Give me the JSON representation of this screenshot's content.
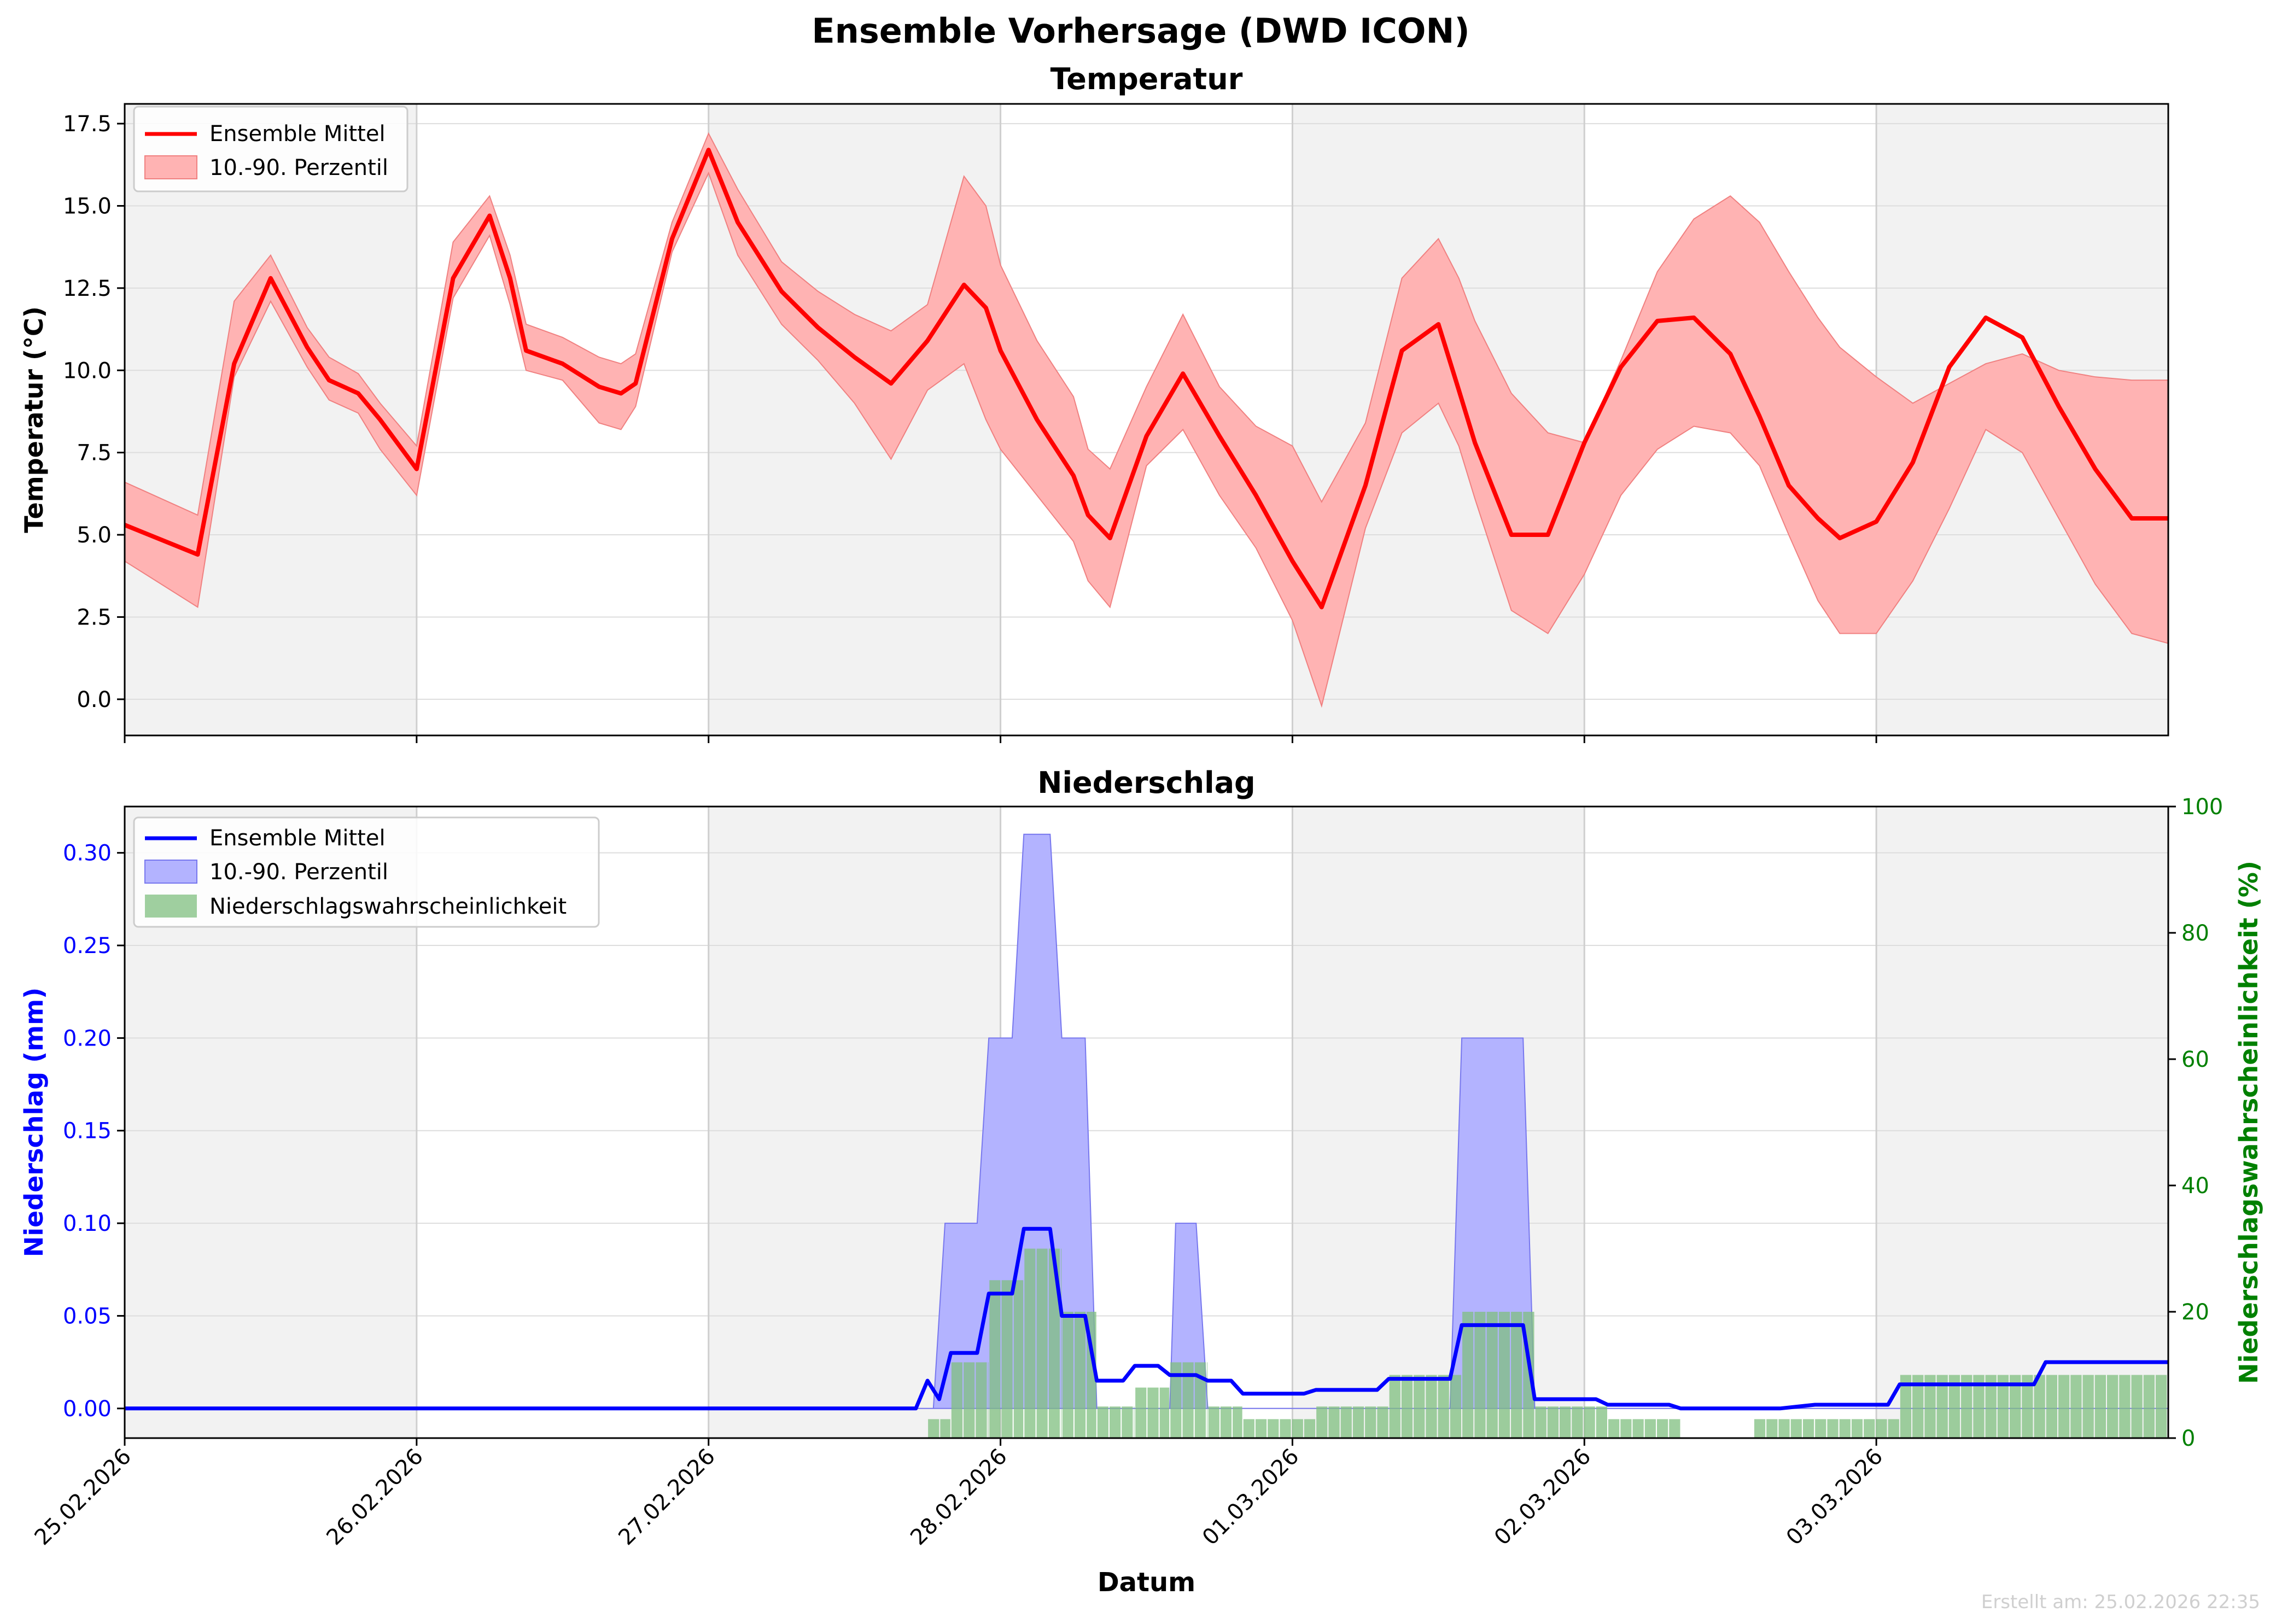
{
  "figure": {
    "suptitle": "Ensemble Vorhersage (DWD ICON)",
    "footer": "Erstellt am: 25.02.2026 22:35",
    "xlabel": "Datum",
    "date_labels": [
      "25.02.2026",
      "26.02.2026",
      "27.02.2026",
      "28.02.2026",
      "01.03.2026",
      "02.03.2026",
      "03.03.2026"
    ]
  },
  "colors": {
    "temp_line": "#ff0000",
    "temp_band": "#ffb3b3",
    "precip_line": "#0000ff",
    "precip_band": "#b3b3ff",
    "prob_bar": "#7fbf7f",
    "night_shade": "#f2f2f2",
    "prob_axis": "#008000"
  },
  "chart_data": [
    {
      "type": "line",
      "title": "Temperatur",
      "ylabel": "Temperatur (°C)",
      "xlim_days": [
        0,
        7.0
      ],
      "ylim": [
        -1.1,
        18.1
      ],
      "yticks": [
        "0.0",
        "2.5",
        "5.0",
        "7.5",
        "10.0",
        "12.5",
        "15.0",
        "17.5"
      ],
      "legend": {
        "placement": "top-left",
        "entries": [
          "Ensemble Mittel",
          "10.-90. Perzentil"
        ]
      },
      "shaded_intervals_days": [
        [
          0,
          1
        ],
        [
          2,
          3
        ],
        [
          4,
          5
        ],
        [
          6,
          7
        ]
      ],
      "x_days": [
        0,
        0.25,
        0.375,
        0.5,
        0.625,
        0.7,
        0.8,
        0.875,
        1.0,
        1.125,
        1.25,
        1.32,
        1.375,
        1.5,
        1.625,
        1.7,
        1.75,
        1.875,
        2.0,
        2.1,
        2.25,
        2.375,
        2.5,
        2.625,
        2.75,
        2.875,
        2.95,
        3.0,
        3.125,
        3.25,
        3.3,
        3.375,
        3.5,
        3.625,
        3.75,
        3.875,
        4.0,
        4.1,
        4.25,
        4.375,
        4.5,
        4.57,
        4.625,
        4.75,
        4.875,
        5.0,
        5.125,
        5.25,
        5.375,
        5.5,
        5.6,
        5.7,
        5.8,
        5.875,
        6.0,
        6.125,
        6.25,
        6.375,
        6.5,
        6.625,
        6.75,
        6.875,
        7.0
      ],
      "series": [
        {
          "name": "Ensemble Mittel",
          "values": [
            5.3,
            4.4,
            10.2,
            12.8,
            10.7,
            9.7,
            9.3,
            8.5,
            7.0,
            12.8,
            14.7,
            12.8,
            10.6,
            10.2,
            9.5,
            9.3,
            9.6,
            14.0,
            16.7,
            14.5,
            12.4,
            11.3,
            10.4,
            9.6,
            10.9,
            12.6,
            11.9,
            10.6,
            8.5,
            6.8,
            5.6,
            4.9,
            8.0,
            9.9,
            8.0,
            6.2,
            4.2,
            2.8,
            6.5,
            10.6,
            11.4,
            9.4,
            7.8,
            5.0,
            5.0,
            7.8,
            10.1,
            11.5,
            11.6,
            10.5,
            8.6,
            6.5,
            5.5,
            4.9,
            5.4,
            7.2,
            10.1,
            11.6,
            11.0,
            8.9,
            7.0,
            5.5,
            5.5
          ]
        },
        {
          "name": "10.-90. Perzentil",
          "lower": [
            4.2,
            2.8,
            9.8,
            12.1,
            10.1,
            9.1,
            8.7,
            7.6,
            6.2,
            12.2,
            14.1,
            12.0,
            10.0,
            9.7,
            8.4,
            8.2,
            8.9,
            13.6,
            16.0,
            13.5,
            11.4,
            10.3,
            9.0,
            7.3,
            9.4,
            10.2,
            8.5,
            7.6,
            6.2,
            4.8,
            3.6,
            2.8,
            7.1,
            8.2,
            6.2,
            4.6,
            2.4,
            -0.2,
            5.2,
            8.1,
            9.0,
            7.7,
            6.1,
            2.7,
            2.0,
            3.8,
            6.2,
            7.6,
            8.3,
            8.1,
            7.1,
            5.0,
            3.0,
            2.0,
            2.0,
            3.6,
            5.8,
            8.2,
            7.5,
            5.5,
            3.5,
            2.0,
            1.7
          ],
          "upper": [
            6.6,
            5.6,
            12.1,
            13.5,
            11.3,
            10.4,
            9.9,
            9.0,
            7.7,
            13.9,
            15.3,
            13.5,
            11.4,
            11.0,
            10.4,
            10.2,
            10.5,
            14.5,
            17.2,
            15.5,
            13.3,
            12.4,
            11.7,
            11.2,
            12.0,
            15.9,
            15.0,
            13.2,
            10.9,
            9.2,
            7.6,
            7.0,
            9.5,
            11.7,
            9.5,
            8.3,
            7.7,
            6.0,
            8.4,
            12.8,
            14.0,
            12.8,
            11.5,
            9.3,
            8.1,
            7.8,
            10.3,
            13.0,
            14.6,
            15.3,
            14.5,
            13.0,
            11.6,
            10.7,
            9.8,
            9.0,
            9.6,
            10.2,
            10.5,
            10.0,
            9.8,
            9.7,
            9.7
          ]
        }
      ]
    },
    {
      "type": "line",
      "title": "Niederschlag",
      "ylabel": "Niederschlag (mm)",
      "y2label": "Niederschlagswahrscheinlichkeit (%)",
      "xlim_days": [
        0,
        7.0
      ],
      "ylim": [
        -0.016,
        0.325
      ],
      "y2lim": [
        0,
        100
      ],
      "yticks": [
        "0.00",
        "0.05",
        "0.10",
        "0.15",
        "0.20",
        "0.25",
        "0.30"
      ],
      "y2ticks": [
        "0",
        "20",
        "40",
        "60",
        "80",
        "100"
      ],
      "legend": {
        "placement": "top-left",
        "entries": [
          "Ensemble Mittel",
          "10.-90. Perzentil",
          "Niederschlagswahrscheinlichkeit"
        ]
      },
      "shaded_intervals_days": [
        [
          0,
          1
        ],
        [
          2,
          3
        ],
        [
          4,
          5
        ],
        [
          6,
          7
        ]
      ],
      "step_width_days": 0.125,
      "mean_steps": [
        [
          0,
          0
        ],
        [
          2.71,
          0
        ],
        [
          2.75,
          0.015
        ],
        [
          2.79,
          0.005
        ],
        [
          2.83,
          0.03
        ],
        [
          2.92,
          0.03
        ],
        [
          2.96,
          0.062
        ],
        [
          3.04,
          0.062
        ],
        [
          3.08,
          0.097
        ],
        [
          3.17,
          0.097
        ],
        [
          3.21,
          0.05
        ],
        [
          3.29,
          0.05
        ],
        [
          3.33,
          0.015
        ],
        [
          3.42,
          0.015
        ],
        [
          3.46,
          0.023
        ],
        [
          3.54,
          0.023
        ],
        [
          3.58,
          0.018
        ],
        [
          3.67,
          0.018
        ],
        [
          3.71,
          0.015
        ],
        [
          3.79,
          0.015
        ],
        [
          3.83,
          0.008
        ],
        [
          4.04,
          0.008
        ],
        [
          4.08,
          0.01
        ],
        [
          4.29,
          0.01
        ],
        [
          4.33,
          0.016
        ],
        [
          4.54,
          0.016
        ],
        [
          4.58,
          0.045
        ],
        [
          4.79,
          0.045
        ],
        [
          4.83,
          0.005
        ],
        [
          5.04,
          0.005
        ],
        [
          5.08,
          0.002
        ],
        [
          5.29,
          0.002
        ],
        [
          5.33,
          0.0
        ],
        [
          5.67,
          0.0
        ],
        [
          5.79,
          0.002
        ],
        [
          6.04,
          0.002
        ],
        [
          6.08,
          0.013
        ],
        [
          6.54,
          0.013
        ],
        [
          6.58,
          0.025
        ],
        [
          7.0,
          0.025
        ]
      ],
      "band_upper_steps": [
        [
          0,
          0
        ],
        [
          2.77,
          0
        ],
        [
          2.81,
          0.1
        ],
        [
          2.92,
          0.1
        ],
        [
          2.96,
          0.2
        ],
        [
          3.04,
          0.2
        ],
        [
          3.08,
          0.31
        ],
        [
          3.17,
          0.31
        ],
        [
          3.21,
          0.2
        ],
        [
          3.29,
          0.2
        ],
        [
          3.33,
          0.0
        ],
        [
          3.58,
          0.0
        ],
        [
          3.6,
          0.1
        ],
        [
          3.67,
          0.1
        ],
        [
          3.71,
          0.0
        ],
        [
          4.54,
          0.0
        ],
        [
          4.58,
          0.2
        ],
        [
          4.79,
          0.2
        ],
        [
          4.83,
          0.0
        ],
        [
          7.0,
          0.0
        ]
      ],
      "probability_bars": [
        {
          "start": 2.75,
          "end": 2.83,
          "value": 3
        },
        {
          "start": 2.83,
          "end": 2.96,
          "value": 12
        },
        {
          "start": 2.96,
          "end": 3.08,
          "value": 25
        },
        {
          "start": 3.08,
          "end": 3.21,
          "value": 30
        },
        {
          "start": 3.21,
          "end": 3.33,
          "value": 20
        },
        {
          "start": 3.33,
          "end": 3.46,
          "value": 5
        },
        {
          "start": 3.46,
          "end": 3.58,
          "value": 8
        },
        {
          "start": 3.58,
          "end": 3.71,
          "value": 12
        },
        {
          "start": 3.71,
          "end": 3.83,
          "value": 5
        },
        {
          "start": 3.83,
          "end": 4.08,
          "value": 3
        },
        {
          "start": 4.08,
          "end": 4.33,
          "value": 5
        },
        {
          "start": 4.33,
          "end": 4.58,
          "value": 10
        },
        {
          "start": 4.58,
          "end": 4.83,
          "value": 20
        },
        {
          "start": 4.83,
          "end": 5.08,
          "value": 5
        },
        {
          "start": 5.08,
          "end": 5.33,
          "value": 3
        },
        {
          "start": 5.58,
          "end": 6.08,
          "value": 3
        },
        {
          "start": 6.08,
          "end": 7.0,
          "value": 10
        }
      ]
    }
  ]
}
